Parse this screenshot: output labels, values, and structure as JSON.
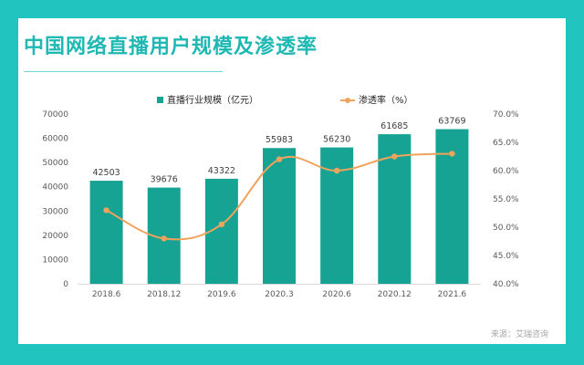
{
  "title": "中国网络直播用户规模及渗透率",
  "source": "来源：艾瑞咨询",
  "colors": {
    "background": "#21c4bf",
    "bar": "#17a393",
    "line": "#f0a35c",
    "title": "#1fb8b3"
  },
  "chart_data": {
    "type": "bar+line",
    "title": "中国网络直播用户规模及渗透率",
    "categories": [
      "2018.6",
      "2018.12",
      "2019.6",
      "2020.3",
      "2020.6",
      "2020.12",
      "2021.6"
    ],
    "series": [
      {
        "name": "直播行业规模（亿元）",
        "type": "bar",
        "axis": "left",
        "values": [
          42503,
          39676,
          43322,
          55983,
          56230,
          61685,
          63769
        ]
      },
      {
        "name": "渗透率（%）",
        "type": "line",
        "axis": "right",
        "values": [
          53.0,
          48.0,
          50.5,
          62.0,
          60.0,
          62.5,
          63.0
        ]
      }
    ],
    "y_left": {
      "min": 0,
      "max": 70000,
      "step": 10000,
      "ticks": [
        "0",
        "10000",
        "20000",
        "30000",
        "40000",
        "50000",
        "60000",
        "70000"
      ]
    },
    "y_right": {
      "min": 40,
      "max": 70,
      "step": 5,
      "ticks": [
        "40.0%",
        "45.0%",
        "50.0%",
        "55.0%",
        "60.0%",
        "65.0%",
        "70.0%"
      ]
    },
    "grid": false,
    "legend": "top-center",
    "bar_labels": [
      "42503",
      "39676",
      "43322",
      "55983",
      "56230",
      "61685",
      "63769"
    ]
  }
}
